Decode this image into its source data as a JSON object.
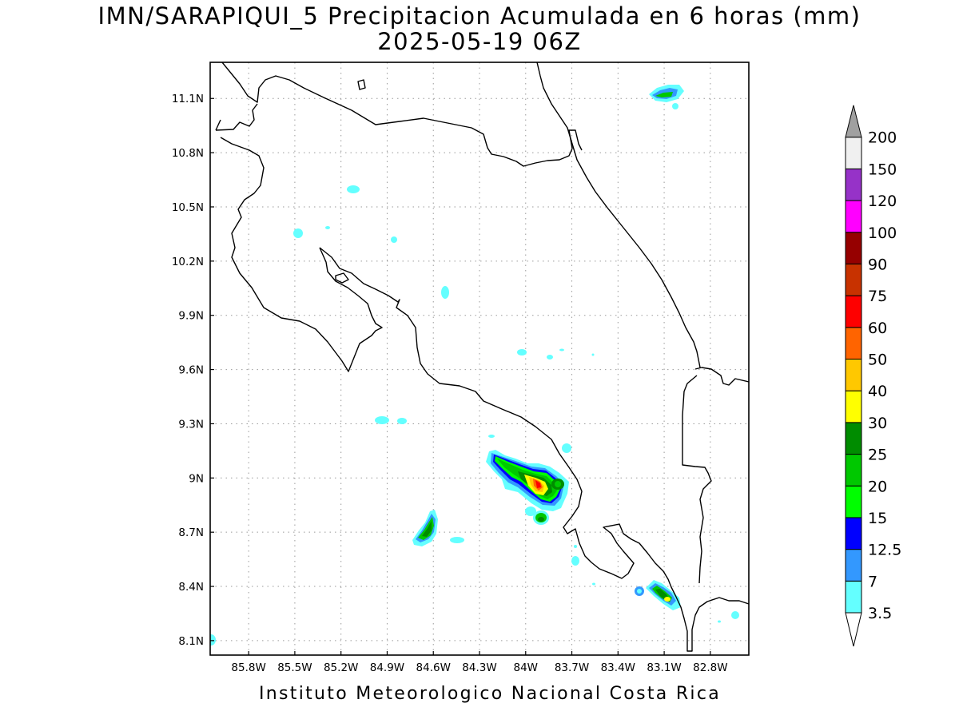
{
  "map": {
    "title": "IMN/SARAPIQUI_5 Precipitacion Acumulada en 6 horas (mm)",
    "subtitle": "2025-05-19 06Z",
    "credit": "Instituto Meteorologico Nacional Costa Rica",
    "lon_range": [
      -86.05,
      -82.55
    ],
    "lat_range": [
      8.02,
      11.3
    ],
    "lon_ticks": [
      {
        "value": -85.8,
        "label": "85.8W"
      },
      {
        "value": -85.5,
        "label": "85.5W"
      },
      {
        "value": -85.2,
        "label": "85.2W"
      },
      {
        "value": -84.9,
        "label": "84.9W"
      },
      {
        "value": -84.6,
        "label": "84.6W"
      },
      {
        "value": -84.3,
        "label": "84.3W"
      },
      {
        "value": -84.0,
        "label": "84W"
      },
      {
        "value": -83.7,
        "label": "83.7W"
      },
      {
        "value": -83.4,
        "label": "83.4W"
      },
      {
        "value": -83.1,
        "label": "83.1W"
      },
      {
        "value": -82.8,
        "label": "82.8W"
      }
    ],
    "lat_ticks": [
      {
        "value": 11.1,
        "label": "11.1N"
      },
      {
        "value": 10.8,
        "label": "10.8N"
      },
      {
        "value": 10.5,
        "label": "10.5N"
      },
      {
        "value": 10.2,
        "label": "10.2N"
      },
      {
        "value": 9.9,
        "label": "9.9N"
      },
      {
        "value": 9.6,
        "label": "9.6N"
      },
      {
        "value": 9.3,
        "label": "9.3N"
      },
      {
        "value": 9.0,
        "label": "9N"
      },
      {
        "value": 8.7,
        "label": "8.7N"
      },
      {
        "value": 8.4,
        "label": "8.4N"
      },
      {
        "value": 8.1,
        "label": "8.1N"
      }
    ],
    "gridlines": true,
    "coast_color": "#000000"
  },
  "legend": {
    "placement": "right",
    "levels": [
      {
        "label": "3.5",
        "color": "#64ffff"
      },
      {
        "label": "7",
        "color": "#3398fe"
      },
      {
        "label": "12.5",
        "color": "#0000fe"
      },
      {
        "label": "15",
        "color": "#00fe00"
      },
      {
        "label": "20",
        "color": "#00c800"
      },
      {
        "label": "25",
        "color": "#008c00"
      },
      {
        "label": "30",
        "color": "#ffff00"
      },
      {
        "label": "40",
        "color": "#ffc800"
      },
      {
        "label": "50",
        "color": "#ff6400"
      },
      {
        "label": "60",
        "color": "#fe0000"
      },
      {
        "label": "75",
        "color": "#c83200"
      },
      {
        "label": "90",
        "color": "#960000"
      },
      {
        "label": "100",
        "color": "#ff00ff"
      },
      {
        "label": "120",
        "color": "#9632c8"
      },
      {
        "label": "150",
        "color": "#f0f0f0"
      },
      {
        "label": "200",
        "color": "#a0a0a0"
      }
    ]
  }
}
